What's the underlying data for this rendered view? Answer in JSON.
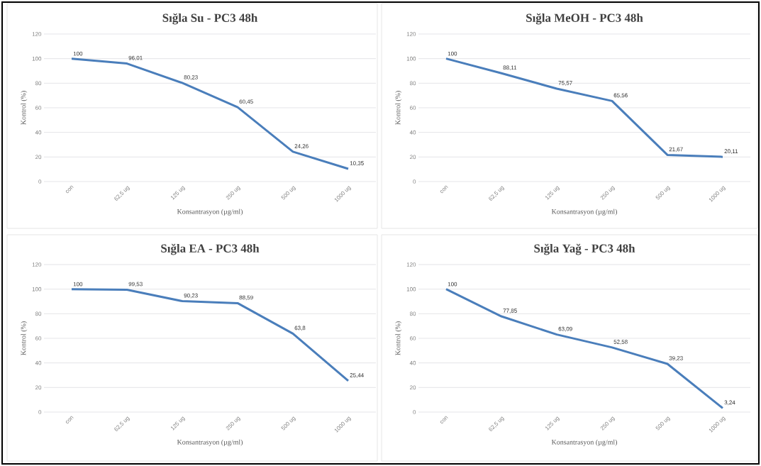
{
  "chart_data": [
    {
      "type": "line",
      "title": "Sığla Su - PC3 48h",
      "xlabel": "Konsantrasyon (µg/ml)",
      "ylabel": "Kontrol (%)",
      "categories": [
        "con",
        "62,5 ug",
        "125 ug",
        "250 ug",
        "500 ug",
        "1000 ug"
      ],
      "values": [
        100,
        96.01,
        80.23,
        60.45,
        24.26,
        10.35
      ],
      "value_labels": [
        "100",
        "96,01",
        "80,23",
        "60,45",
        "24,26",
        "10,35"
      ],
      "color": "#4a7ebb",
      "ylim": [
        0,
        120
      ],
      "yticks": [
        0,
        20,
        40,
        60,
        80,
        100,
        120
      ],
      "grid": "y"
    },
    {
      "type": "line",
      "title": "Sığla MeOH - PC3 48h",
      "xlabel": "Konsantrasyon (µg/ml)",
      "ylabel": "Kontrol (%)",
      "categories": [
        "con",
        "62,5 ug",
        "125 ug",
        "250 ug",
        "500 ug",
        "1000 ug"
      ],
      "values": [
        100,
        88.11,
        75.57,
        65.56,
        21.67,
        20.11
      ],
      "value_labels": [
        "100",
        "88,11",
        "75,57",
        "65,56",
        "21,67",
        "20,11"
      ],
      "color": "#4a7ebb",
      "ylim": [
        0,
        120
      ],
      "yticks": [
        0,
        20,
        40,
        60,
        80,
        100,
        120
      ],
      "grid": "y"
    },
    {
      "type": "line",
      "title": "Sığla EA - PC3 48h",
      "xlabel": "Konsantrasyon (µg/ml)",
      "ylabel": "Kontrol (%)",
      "categories": [
        "con",
        "62,5 ug",
        "125 ug",
        "250 ug",
        "500 ug",
        "1000 ug"
      ],
      "values": [
        100,
        99.53,
        90.23,
        88.59,
        63.8,
        25.44
      ],
      "value_labels": [
        "100",
        "99,53",
        "90,23",
        "88,59",
        "63,8",
        "25,44"
      ],
      "color": "#4a7ebb",
      "ylim": [
        0,
        120
      ],
      "yticks": [
        0,
        20,
        40,
        60,
        80,
        100,
        120
      ],
      "grid": "y"
    },
    {
      "type": "line",
      "title": "Sığla Yağ - PC3 48h",
      "xlabel": "Konsantrasyon (µg/ml)",
      "ylabel": "Kontrol (%)",
      "categories": [
        "con",
        "62,5 ug",
        "125 ug",
        "250 ug",
        "500 ug",
        "1000 ug"
      ],
      "values": [
        100,
        77.85,
        63.09,
        52.58,
        39.23,
        3.24
      ],
      "value_labels": [
        "100",
        "77,85",
        "63,09",
        "52,58",
        "39,23",
        "3,24"
      ],
      "color": "#4a7ebb",
      "ylim": [
        0,
        120
      ],
      "yticks": [
        0,
        20,
        40,
        60,
        80,
        100,
        120
      ],
      "grid": "y"
    }
  ]
}
